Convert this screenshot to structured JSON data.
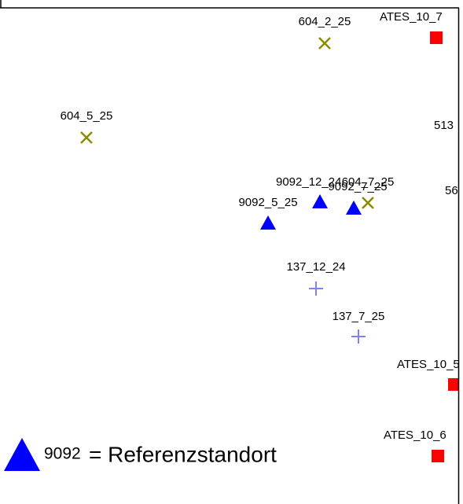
{
  "points": [
    {
      "label": "604_2_25",
      "symbol": "x",
      "color": "#8b8b00"
    },
    {
      "label": "ATES_10_7",
      "symbol": "square",
      "color": "#ff0000"
    },
    {
      "label": "604_5_25",
      "symbol": "x",
      "color": "#8b8b00"
    },
    {
      "label": "513",
      "symbol": "none",
      "color": "#000000"
    },
    {
      "label": "9092_12_24",
      "symbol": "triangle",
      "color": "#0000ff"
    },
    {
      "label": "604_7_25",
      "symbol": "x",
      "color": "#8b8b00"
    },
    {
      "label": "9092_7_25",
      "symbol": "triangle",
      "color": "#0000ff"
    },
    {
      "label": "56",
      "symbol": "none",
      "color": "#000000"
    },
    {
      "label": "9092_5_25",
      "symbol": "triangle",
      "color": "#0000ff"
    },
    {
      "label": "137_12_24",
      "symbol": "plus",
      "color": "#8080ff"
    },
    {
      "label": "137_7_25",
      "symbol": "plus",
      "color": "#8080ff"
    },
    {
      "label": "ATES_10_5",
      "symbol": "square",
      "color": "#ff0000"
    },
    {
      "label": "ATES_10_6",
      "symbol": "square",
      "color": "#ff0000"
    }
  ],
  "legend": {
    "code": "9092",
    "text": "= Referenzstandort",
    "color": "#0000ff"
  }
}
